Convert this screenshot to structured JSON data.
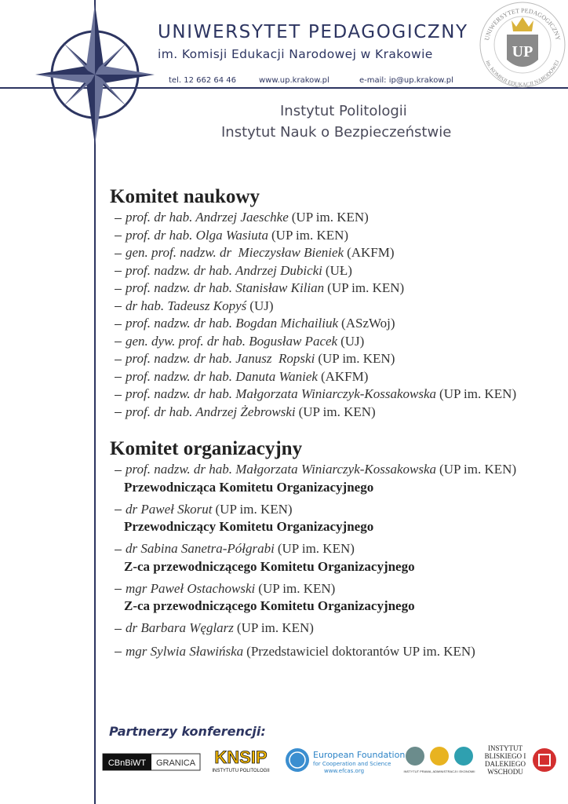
{
  "header": {
    "university": "UNIWERSYTET PEDAGOGICZNY",
    "patron": "im. Komisji Edukacji Narodowej w Krakowie",
    "phone": "tel. 12 662 64 46",
    "website": "www.up.krakow.pl",
    "email": "e-mail: ip@up.krakow.pl",
    "seal": {
      "ring_top": "UNIWERSYTET PEDAGOGICZNY",
      "ring_bottom": "im. KOMISJI EDUKACJI NARODOWEJ",
      "monogram": "UP"
    }
  },
  "institutes": [
    "Instytut Politologii",
    "Instytut Nauk o Bezpieczeństwie"
  ],
  "scientific_committee": {
    "title": "Komitet naukowy",
    "members": [
      {
        "name": "prof. dr hab. Andrzej Jaeschke",
        "affiliation": "(UP im. KEN)"
      },
      {
        "name": "prof. dr hab. Olga Wasiuta",
        "affiliation": "(UP im. KEN)"
      },
      {
        "name": "gen. prof. nadzw. dr  Mieczysław Bieniek",
        "affiliation": "(AKFM)"
      },
      {
        "name": "prof. nadzw. dr hab. Andrzej Dubicki",
        "affiliation": "(UŁ)"
      },
      {
        "name": "prof. nadzw. dr hab. Stanisław Kilian",
        "affiliation": "(UP im. KEN)"
      },
      {
        "name": "dr hab. Tadeusz Kopyś",
        "affiliation": "(UJ)"
      },
      {
        "name": "prof. nadzw. dr hab. Bogdan Michailiuk",
        "affiliation": "(ASzWoj)"
      },
      {
        "name": "gen. dyw. prof. dr hab. Bogusław Pacek",
        "affiliation": "(UJ)"
      },
      {
        "name": "prof. nadzw. dr hab. Janusz  Ropski",
        "affiliation": "(UP im. KEN)"
      },
      {
        "name": "prof. nadzw. dr hab. Danuta Waniek",
        "affiliation": "(AKFM)"
      },
      {
        "name": "prof. nadzw. dr hab. Małgorzata Winiarczyk-Kossakowska",
        "affiliation": "(UP im. KEN)"
      },
      {
        "name": "prof. dr hab. Andrzej Żebrowski",
        "affiliation": "(UP im. KEN)"
      }
    ]
  },
  "organizing_committee": {
    "title": "Komitet organizacyjny",
    "members": [
      {
        "name": "prof. nadzw. dr hab. Małgorzata Winiarczyk-Kossakowska",
        "affiliation": "(UP im. KEN)",
        "role": "Przewodnicząca Komitetu Organizacyjnego"
      },
      {
        "name": "dr Paweł Skorut",
        "affiliation": "(UP im. KEN)",
        "role": "Przewodniczący Komitetu Organizacyjnego"
      },
      {
        "name": "dr Sabina Sanetra-Półgrabi",
        "affiliation": "(UP im. KEN)",
        "role": "Z-ca przewodniczącego Komitetu Organizacyjnego"
      },
      {
        "name": "mgr Paweł Ostachowski",
        "affiliation": "(UP im. KEN)",
        "role": "Z-ca przewodniczącego Komitetu Organizacyjnego"
      },
      {
        "name": "dr Barbara Węglarz",
        "affiliation": "(UP im. KEN)"
      },
      {
        "name": "mgr Sylwia Sławińska",
        "affiliation": "(Przedstawiciel doktorantów UP im. KEN)"
      }
    ]
  },
  "partners": {
    "title": "Partnerzy konferencji:",
    "logos": {
      "cbnbiwt": "CBnBiWT",
      "granica": "GRANICA",
      "knsip": "KNSIP",
      "knsip_sub": "INSTYTUTU POLITOLOGII",
      "efcas_1": "European Foundation",
      "efcas_2": "for Cooperation and Science",
      "efcas_3": "www.efcas.org",
      "ipae": "INSTYTUT PRAWA, ADMINISTRACJI I EKONOMII",
      "ibidw": "INSTYTUT BLISKIEGO I DALEKIEGO WSCHODU"
    }
  }
}
